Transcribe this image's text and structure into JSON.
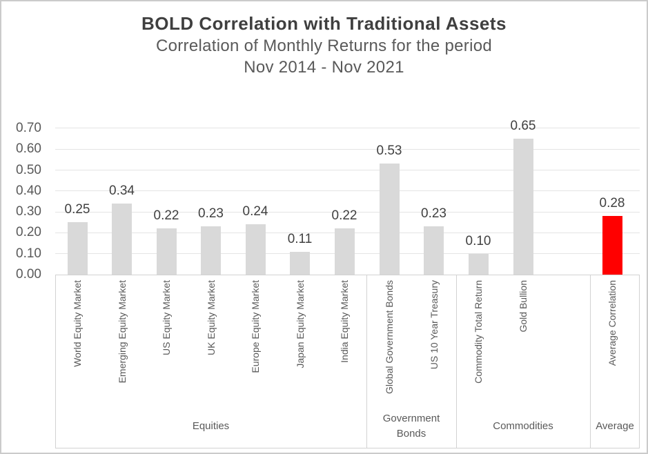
{
  "header": {
    "title": "BOLD Correlation with Traditional Assets",
    "subtitle_line1": "Correlation of Monthly Returns for the period",
    "subtitle_line2": "Nov 2014 - Nov 2021"
  },
  "chart_data": {
    "type": "bar",
    "title": "BOLD Correlation with Traditional Assets",
    "subtitle": "Correlation of Monthly Returns for the period Nov 2014 - Nov 2021",
    "categories": [
      "World Equity Market",
      "Emerging Equity Market",
      "US Equity Market",
      "UK Equity Market",
      "Europe Equity Market",
      "Japan Equity Market",
      "India Equity Market",
      "Global Government Bonds",
      "US 10 Year Treasury",
      "Commodity Total Return",
      "Gold Bullion",
      "Average Correlation"
    ],
    "values": [
      0.25,
      0.34,
      0.22,
      0.23,
      0.24,
      0.11,
      0.22,
      0.53,
      0.23,
      0.1,
      0.65,
      0.28
    ],
    "display_values": [
      "0.25",
      "0.34",
      "0.22",
      "0.23",
      "0.24",
      "0.11",
      "0.22",
      "0.53",
      "0.23",
      "0.10",
      "0.65",
      "0.28"
    ],
    "groups": [
      {
        "label": "Equities",
        "count": 7
      },
      {
        "label": "Government\nBonds",
        "count": 2
      },
      {
        "label": "Commodities",
        "count": 2
      },
      {
        "label": "Average",
        "count": 1
      }
    ],
    "highlight_index": 11,
    "colors": {
      "bar_default": "#d9d9d9",
      "bar_highlight": "#ff0000"
    },
    "yticks": [
      "0.00",
      "0.10",
      "0.20",
      "0.30",
      "0.40",
      "0.50",
      "0.60",
      "0.70"
    ],
    "ytick_step": 0.1,
    "ylim": [
      0,
      0.7
    ],
    "grid": true,
    "legend": "none",
    "xlabel": "",
    "ylabel": ""
  }
}
